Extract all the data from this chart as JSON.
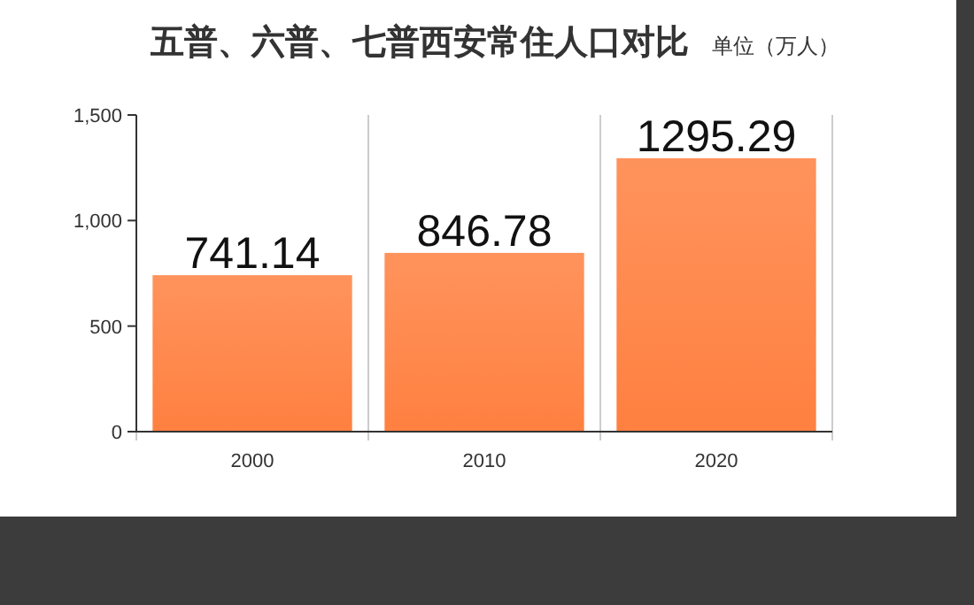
{
  "chart_data": {
    "type": "bar",
    "title": "五普、六普、七普西安常住人口对比",
    "subtitle": "单位（万人）",
    "categories": [
      "2000",
      "2010",
      "2020"
    ],
    "values": [
      741.14,
      846.78,
      1295.29
    ],
    "color": "#ff8040",
    "ylim": [
      0,
      1500
    ],
    "yticks": [
      0,
      {
        "value": 500,
        "label": "500"
      },
      {
        "value": 1000,
        "label": "1,000"
      },
      {
        "value": 1500,
        "label": "1,500"
      }
    ],
    "grid": "x",
    "data_labels": true
  }
}
